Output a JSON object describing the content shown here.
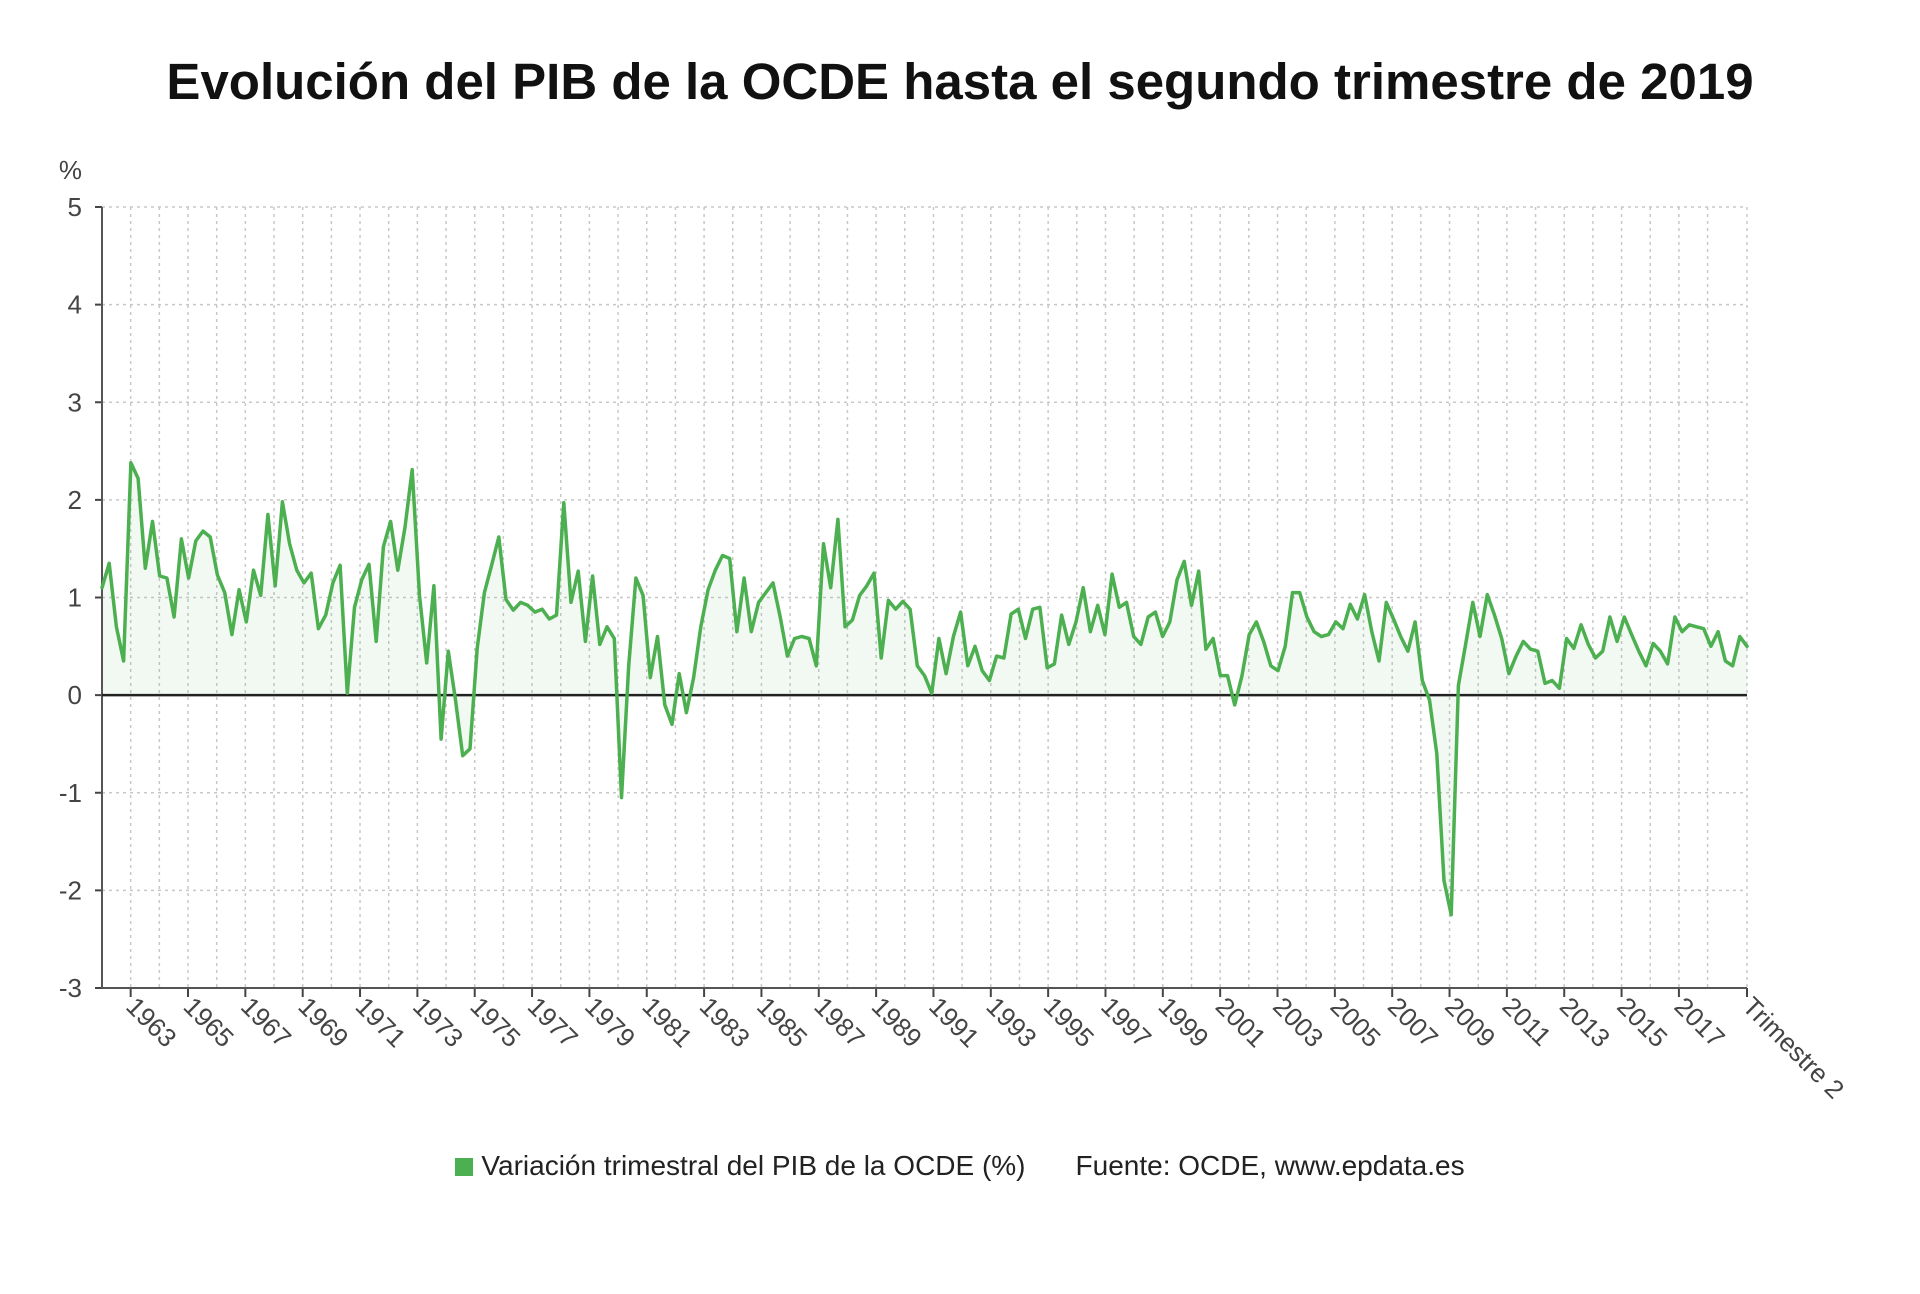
{
  "chart_data": {
    "type": "line",
    "title": "Evolución del PIB de la OCDE hasta el segundo trimestre de 2019",
    "ylabel": "%",
    "xlabel": "",
    "ylim": [
      -3,
      5
    ],
    "yticks": [
      -3,
      -2,
      -1,
      0,
      1,
      2,
      3,
      4,
      5
    ],
    "x_start": 1962,
    "x_end": 2019.375,
    "x_tick_labels": [
      "1963",
      "1965",
      "1967",
      "1969",
      "1971",
      "1973",
      "1975",
      "1977",
      "1979",
      "1981",
      "1983",
      "1985",
      "1987",
      "1989",
      "1991",
      "1993",
      "1995",
      "1997",
      "1999",
      "2001",
      "2003",
      "2005",
      "2007",
      "2009",
      "2011",
      "2013",
      "2015",
      "2017",
      "Trimestre 2"
    ],
    "grid": true,
    "legend_position": "bottom",
    "source": "Fuente: OCDE, www.epdata.es",
    "series": [
      {
        "name": "Variación trimestral del PIB de la OCDE (%)",
        "color": "#4caf50",
        "values": [
          1.1,
          1.35,
          0.7,
          0.35,
          2.38,
          2.22,
          1.3,
          1.78,
          1.22,
          1.2,
          0.8,
          1.6,
          1.2,
          1.58,
          1.68,
          1.62,
          1.23,
          1.05,
          0.62,
          1.08,
          0.75,
          1.28,
          1.02,
          1.85,
          1.12,
          1.98,
          1.55,
          1.28,
          1.15,
          1.25,
          0.68,
          0.82,
          1.15,
          1.33,
          0.02,
          0.9,
          1.18,
          1.34,
          0.55,
          1.52,
          1.78,
          1.28,
          1.72,
          2.31,
          1.02,
          0.33,
          1.12,
          -0.45,
          0.45,
          -0.05,
          -0.62,
          -0.55,
          0.48,
          1.05,
          1.33,
          1.62,
          0.98,
          0.87,
          0.95,
          0.92,
          0.85,
          0.88,
          0.78,
          0.82,
          1.97,
          0.95,
          1.27,
          0.55,
          1.22,
          0.52,
          0.7,
          0.58,
          -1.05,
          0.3,
          1.2,
          1.02,
          0.18,
          0.6,
          -0.1,
          -0.3,
          0.22,
          -0.18,
          0.18,
          0.7,
          1.08,
          1.28,
          1.43,
          1.4,
          0.65,
          1.2,
          0.65,
          0.95,
          1.05,
          1.15,
          0.8,
          0.4,
          0.58,
          0.6,
          0.58,
          0.3,
          1.55,
          1.1,
          1.8,
          0.7,
          0.77,
          1.02,
          1.12,
          1.25,
          0.38,
          0.97,
          0.88,
          0.96,
          0.88,
          0.3,
          0.2,
          0.02,
          0.58,
          0.22,
          0.6,
          0.85,
          0.3,
          0.5,
          0.25,
          0.15,
          0.4,
          0.38,
          0.83,
          0.88,
          0.58,
          0.88,
          0.9,
          0.28,
          0.32,
          0.82,
          0.52,
          0.75,
          1.1,
          0.65,
          0.92,
          0.62,
          1.24,
          0.9,
          0.95,
          0.6,
          0.52,
          0.8,
          0.85,
          0.6,
          0.75,
          1.18,
          1.37,
          0.92,
          1.27,
          0.47,
          0.58,
          0.2,
          0.2,
          -0.1,
          0.2,
          0.62,
          0.75,
          0.55,
          0.3,
          0.25,
          0.5,
          1.05,
          1.05,
          0.8,
          0.65,
          0.6,
          0.62,
          0.75,
          0.68,
          0.93,
          0.78,
          1.03,
          0.65,
          0.35,
          0.95,
          0.78,
          0.6,
          0.45,
          0.75,
          0.15,
          -0.05,
          -0.6,
          -1.9,
          -2.25,
          0.1,
          0.52,
          0.95,
          0.6,
          1.03,
          0.82,
          0.58,
          0.22,
          0.4,
          0.55,
          0.47,
          0.45,
          0.12,
          0.15,
          0.07,
          0.58,
          0.48,
          0.72,
          0.52,
          0.38,
          0.45,
          0.8,
          0.55,
          0.8,
          0.62,
          0.45,
          0.3,
          0.53,
          0.45,
          0.32,
          0.8,
          0.65,
          0.72,
          0.7,
          0.68,
          0.5,
          0.65,
          0.35,
          0.3,
          0.6,
          0.5
        ]
      }
    ]
  }
}
